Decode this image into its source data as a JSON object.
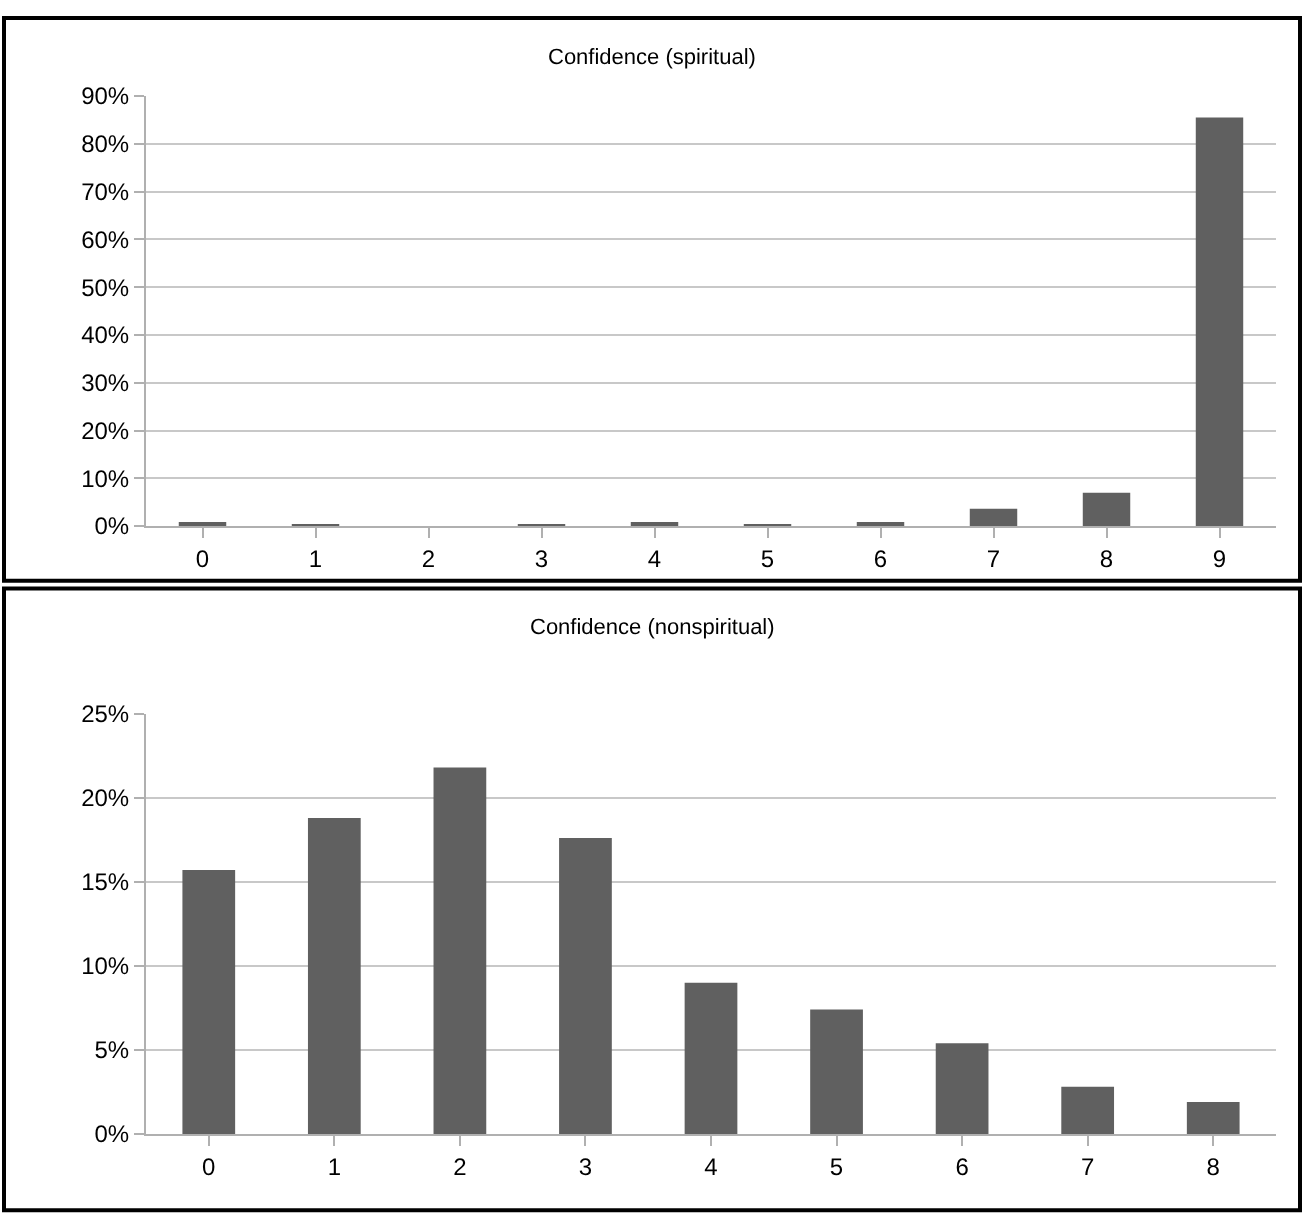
{
  "chart_data": [
    {
      "type": "bar",
      "title": "Confidence (spiritual)",
      "categories": [
        "0",
        "1",
        "2",
        "3",
        "4",
        "5",
        "6",
        "7",
        "8",
        "9"
      ],
      "series": [
        {
          "color": "#606060",
          "values": [
            0.8,
            0.3,
            0,
            0.3,
            0.8,
            0.3,
            0.8,
            3.6,
            7.0,
            85.5
          ]
        }
      ],
      "ylim": [
        0,
        90
      ],
      "yticks": [
        {
          "value": 0,
          "label": "0%"
        },
        {
          "value": 10,
          "label": "10%"
        },
        {
          "value": 20,
          "label": "20%"
        },
        {
          "value": 30,
          "label": "30%"
        },
        {
          "value": 40,
          "label": "40%"
        },
        {
          "value": 50,
          "label": "50%"
        },
        {
          "value": 60,
          "label": "60%"
        },
        {
          "value": 70,
          "label": "70%"
        },
        {
          "value": 80,
          "label": "80%"
        },
        {
          "value": 90,
          "label": "90%"
        }
      ],
      "grid": "y"
    },
    {
      "type": "bar",
      "title": "Confidence (nonspiritual)",
      "categories": [
        "0",
        "1",
        "2",
        "3",
        "4",
        "5",
        "6",
        "7",
        "8"
      ],
      "series": [
        {
          "color": "#606060",
          "values": [
            15.7,
            18.8,
            21.8,
            17.6,
            9.0,
            7.4,
            5.4,
            2.8,
            1.9
          ]
        }
      ],
      "ylim": [
        0,
        25
      ],
      "yticks": [
        {
          "value": 0,
          "label": "0%"
        },
        {
          "value": 5,
          "label": "5%"
        },
        {
          "value": 10,
          "label": "10%"
        },
        {
          "value": 15,
          "label": "15%"
        },
        {
          "value": 20,
          "label": "20%"
        },
        {
          "value": 25,
          "label": "25%"
        }
      ],
      "grid": "y"
    }
  ]
}
